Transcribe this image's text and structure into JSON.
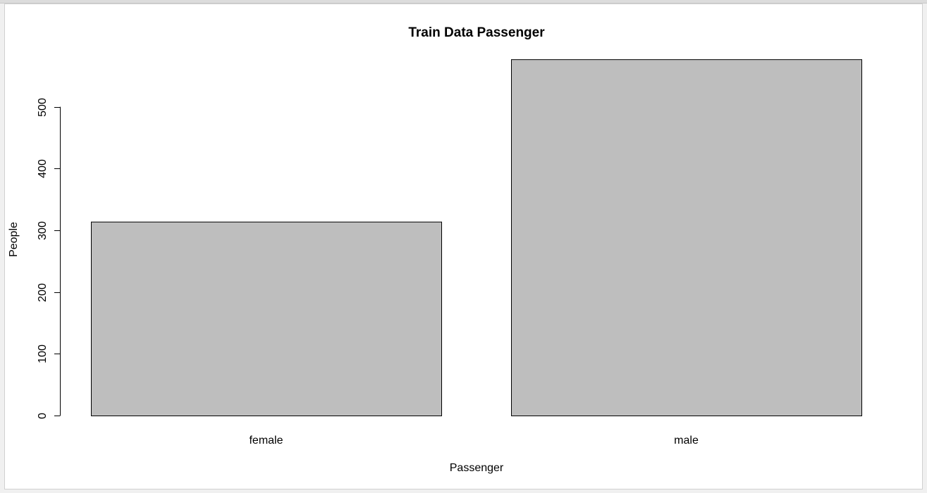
{
  "chart_data": {
    "type": "bar",
    "title": "Train Data Passenger",
    "xlabel": "Passenger",
    "ylabel": "People",
    "categories": [
      "female",
      "male"
    ],
    "values": [
      314,
      577
    ],
    "ylim": [
      0,
      577
    ],
    "yticks": [
      0,
      100,
      200,
      300,
      400,
      500
    ],
    "grid": false,
    "legend": "none",
    "bar_color": "#bebebe",
    "bar_border": "#000000"
  }
}
